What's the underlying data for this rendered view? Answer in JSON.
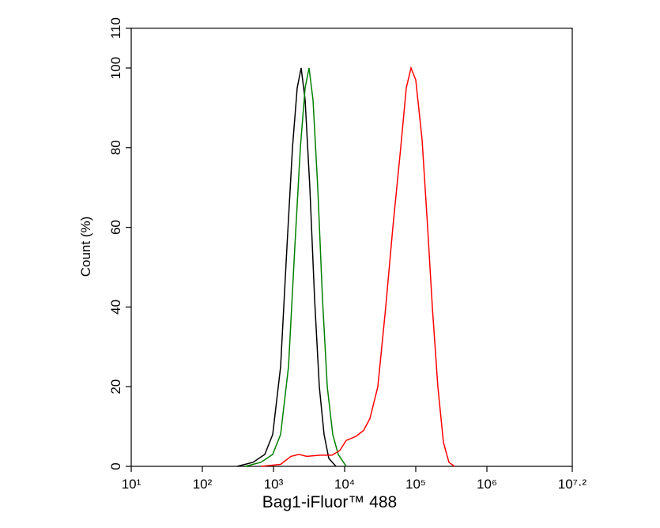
{
  "chart_data": {
    "type": "line",
    "x_label": "Bag1-iFluor™ 488",
    "y_label": "Count  (%)",
    "xscale": "log",
    "xlim": [
      10,
      15848932
    ],
    "ylim": [
      0,
      110
    ],
    "xticks": [
      {
        "value": 10,
        "label": "10¹"
      },
      {
        "value": 100,
        "label": "10²"
      },
      {
        "value": 1000,
        "label": "10³"
      },
      {
        "value": 10000,
        "label": "10⁴"
      },
      {
        "value": 100000,
        "label": "10⁵"
      },
      {
        "value": 1000000,
        "label": "10⁶"
      },
      {
        "value": 15848932,
        "label": "10⁷·²"
      }
    ],
    "yticks": [
      0,
      20,
      40,
      60,
      80,
      100,
      110
    ],
    "series": [
      {
        "color": "#000000",
        "x": [
          308,
          514,
          755,
          975,
          1259,
          1545,
          1849,
          2154,
          2449,
          2783,
          3243,
          3783,
          4408,
          5140,
          5995,
          7551
        ],
        "values": [
          0,
          1,
          3,
          8,
          25,
          55,
          80,
          95,
          100,
          92,
          70,
          42,
          20,
          8,
          2,
          0
        ]
      },
      {
        "color": "#008000",
        "x": [
          398,
          664,
          975,
          1259,
          1626,
          1995,
          2387,
          2783,
          3162,
          3594,
          4190,
          4887,
          5702,
          6813,
          8139,
          10520
        ],
        "values": [
          0,
          1,
          3,
          8,
          25,
          55,
          80,
          95,
          100,
          92,
          70,
          42,
          20,
          8,
          3,
          0
        ]
      },
      {
        "color": "#ff0000",
        "x": [
          664,
          1259,
          1755,
          2268,
          2929,
          4529,
          6635,
          8577,
          10520,
          14330,
          18480,
          22680,
          29290,
          37830,
          47640,
          61470,
          73560,
          85770,
          100000,
          122700,
          146800,
          171000,
          204500,
          244900,
          292900,
          350300
        ],
        "values": [
          0,
          0.5,
          2.5,
          3,
          2.5,
          2.8,
          2.8,
          4,
          6.5,
          7.5,
          9,
          12,
          20,
          40,
          60,
          80,
          95,
          100,
          97,
          82,
          60,
          40,
          20,
          6,
          1,
          0
        ]
      }
    ]
  }
}
